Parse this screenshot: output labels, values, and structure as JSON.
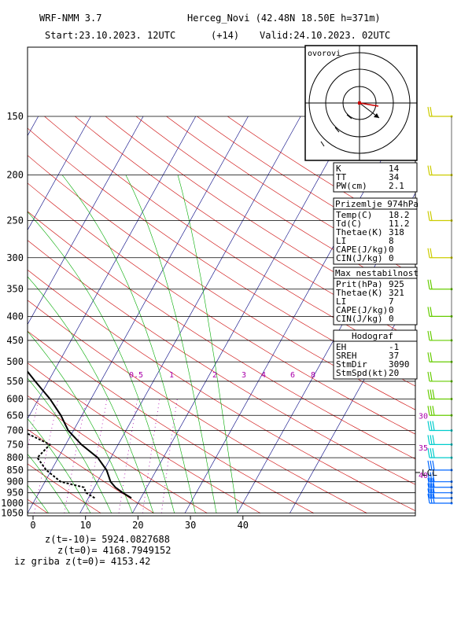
{
  "header": {
    "model": "WRF-NMM 3.7",
    "station": "Herceg_Novi (42.48N 18.50E  h=371m)",
    "start": "Start:23.10.2023.  12UTC",
    "offset": "(+14)",
    "valid": "Valid:24.10.2023.  02UTC"
  },
  "hodograph_label": "ovorovi",
  "footer": {
    "line1": "z(t=-10)= 5924.0827688",
    "line2": "z(t=0)=  4168.7949152",
    "line3": "iz griba z(t=0)= 4153.42"
  },
  "indices": [
    {
      "k": "K",
      "v": "14"
    },
    {
      "k": "TT",
      "v": "34"
    },
    {
      "k": "PW(cm)",
      "v": "2.1"
    }
  ],
  "surface": {
    "title": "Prizemlje 974hPa",
    "rows": [
      {
        "k": "Temp(C)",
        "v": "18.2"
      },
      {
        "k": "Td(C)",
        "v": "11.2"
      },
      {
        "k": "Thetae(K)",
        "v": "318"
      },
      {
        "k": "LI",
        "v": "8"
      },
      {
        "k": "CAPE(J/kg)",
        "v": "0"
      },
      {
        "k": "CIN(J/kg)",
        "v": "0"
      }
    ]
  },
  "max_instability": {
    "title": "Max nestabilnost",
    "rows": [
      {
        "k": "Prit(hPa)",
        "v": "925"
      },
      {
        "k": "Thetae(K)",
        "v": "321"
      },
      {
        "k": "LI",
        "v": "7"
      },
      {
        "k": "CAPE(J/kg)",
        "v": "0"
      },
      {
        "k": "CIN(J/kg)",
        "v": "0"
      }
    ]
  },
  "hodograf": {
    "title": "Hodograf",
    "rows": [
      {
        "k": "EH",
        "v": "-1"
      },
      {
        "k": "SREH",
        "v": "37"
      },
      {
        "k": "StmDir",
        "v": "3090"
      },
      {
        "k": "StmSpd(kt)",
        "v": "20"
      }
    ]
  },
  "mixing_ratio_labels": [
    "0.5",
    "1",
    "2",
    "3",
    "4",
    "6",
    "8"
  ],
  "lcl_label": "LCL",
  "colors": {
    "isotherm": "#000080",
    "isobar": "#000000",
    "dry_adiabat": "#cc0000",
    "moist_adiabat": "#00aa00",
    "mixing_ratio": "#aa00aa",
    "barbs_upper": "#cccc00",
    "barbs_mid": "#66cc00",
    "barbs_low": "#00cccc",
    "barbs_sfc": "#0066ff"
  },
  "chart_data": {
    "type": "skew-t",
    "xlabel": "",
    "ylabel": "",
    "pressure_levels": [
      150,
      200,
      250,
      300,
      350,
      400,
      450,
      500,
      550,
      600,
      650,
      700,
      750,
      800,
      850,
      900,
      950,
      1000,
      1050
    ],
    "temperature_ticks": [
      -30,
      -20,
      -10,
      0,
      10,
      20,
      30,
      40
    ],
    "xlim": [
      -30,
      42
    ],
    "ylim": [
      1050,
      150
    ],
    "temperature": [
      {
        "p": 975,
        "t": 18.2
      },
      {
        "p": 950,
        "t": 16.0
      },
      {
        "p": 925,
        "t": 14.0
      },
      {
        "p": 900,
        "t": 12.5
      },
      {
        "p": 850,
        "t": 10.5
      },
      {
        "p": 800,
        "t": 7.5
      },
      {
        "p": 750,
        "t": 3.0
      },
      {
        "p": 700,
        "t": -1.0
      },
      {
        "p": 650,
        "t": -4.0
      },
      {
        "p": 600,
        "t": -7.8
      },
      {
        "p": 550,
        "t": -12.5
      },
      {
        "p": 500,
        "t": -17.5
      },
      {
        "p": 450,
        "t": -23.5
      },
      {
        "p": 400,
        "t": -30.5
      },
      {
        "p": 350,
        "t": -38.5
      },
      {
        "p": 300,
        "t": -47.0
      },
      {
        "p": 250,
        "t": -55.0
      },
      {
        "p": 200,
        "t": -61.0
      },
      {
        "p": 150,
        "t": -59.0
      }
    ],
    "dewpoint": [
      {
        "p": 975,
        "t": 11.2
      },
      {
        "p": 950,
        "t": 9.0
      },
      {
        "p": 925,
        "t": 8.0
      },
      {
        "p": 900,
        "t": 3.0
      },
      {
        "p": 850,
        "t": -1.0
      },
      {
        "p": 800,
        "t": -4.0
      },
      {
        "p": 750,
        "t": -3.0
      },
      {
        "p": 700,
        "t": -10.0
      },
      {
        "p": 650,
        "t": -18.0
      },
      {
        "p": 600,
        "t": -23.0
      },
      {
        "p": 550,
        "t": -28.0
      },
      {
        "p": 500,
        "t": -34.0
      },
      {
        "p": 450,
        "t": -40.0
      },
      {
        "p": 400,
        "t": -46.0
      },
      {
        "p": 350,
        "t": -53.0
      },
      {
        "p": 300,
        "t": -60.0
      },
      {
        "p": 250,
        "t": -68.0
      },
      {
        "p": 200,
        "t": -85.0
      },
      {
        "p": 150,
        "t": -82.0
      }
    ],
    "wind_barb_levels": [
      150,
      200,
      250,
      300,
      350,
      400,
      450,
      500,
      550,
      600,
      650,
      700,
      750,
      800,
      850,
      900,
      925,
      950,
      975,
      1000
    ],
    "right_axis_labels": [
      {
        "p": 650,
        "label": "30"
      },
      {
        "p": 760,
        "label": "35"
      },
      {
        "p": 870,
        "label": "40"
      }
    ],
    "grid": true
  }
}
